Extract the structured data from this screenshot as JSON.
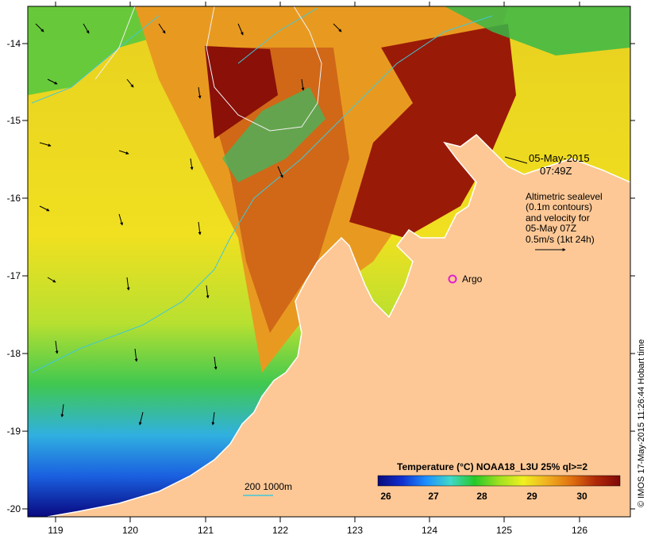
{
  "map": {
    "lat_ticks": [
      "-14",
      "-15",
      "-16",
      "-17",
      "-18",
      "-19",
      "-20"
    ],
    "lon_ticks": [
      "119",
      "120",
      "121",
      "122",
      "123",
      "124",
      "125",
      "126"
    ],
    "date_line": "05-May-2015",
    "time_line": "07:49Z",
    "altimetry_lines": [
      "Altimetric sealevel",
      "(0.1m contours)",
      "and velocity for",
      "05-May 07Z",
      "0.5m/s (1kt 24h)"
    ],
    "argo_label": "Argo",
    "argo_color": "#e020d0",
    "bathy_label": "200  1000m",
    "bathy_color": "#40c8d8",
    "land_color": "#fdc896",
    "colorbar_title": "Temperature (°C) NOAA18_L3U 25% ql>=2",
    "colorbar_ticks": [
      "26",
      "27",
      "28",
      "29",
      "30"
    ],
    "colorbar_colors": [
      "#0a0a7a",
      "#1030d0",
      "#1e90ff",
      "#40d8c8",
      "#28c828",
      "#a0e020",
      "#f0f020",
      "#f0b020",
      "#e07010",
      "#b02808",
      "#800808"
    ],
    "credit": "© IMOS 17-May-2015 11:26:44 Hobart time"
  }
}
